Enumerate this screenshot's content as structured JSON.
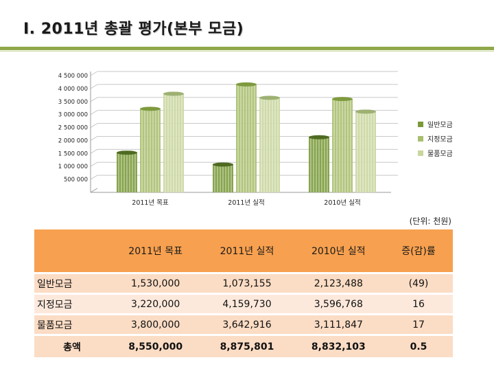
{
  "title": "Ⅰ. 2011년 총괄 평가(본부 모금)",
  "unit_note": "(단위: 천원)",
  "colors": {
    "series1": "#7a9a3a",
    "series2": "#a9bf6e",
    "series3": "#c9d69e",
    "header_bg": "#f7a04f",
    "row_bg": "#fbdcc4",
    "title_rule": "#8fa84a"
  },
  "chart_data": {
    "type": "bar",
    "categories": [
      "2011년 목표",
      "2011년 실적",
      "2010년 실적"
    ],
    "series": [
      {
        "name": "일반모금",
        "values": [
          1530000,
          1073155,
          2123488
        ]
      },
      {
        "name": "지정모금",
        "values": [
          3220000,
          4159730,
          3596768
        ]
      },
      {
        "name": "물품모금",
        "values": [
          3800000,
          3642916,
          3111847
        ]
      }
    ],
    "ylim": [
      0,
      4500000
    ],
    "yticks": [
      500000,
      1000000,
      1500000,
      2000000,
      2500000,
      3000000,
      3500000,
      4000000,
      4500000
    ],
    "ytick_labels": [
      "500 000",
      "1 000 000",
      "1 500 000",
      "2 000 000",
      "2 500 000",
      "3 000 000",
      "3 500 000",
      "4 000 000",
      "4 500 000"
    ],
    "legend_position": "right",
    "grid": true
  },
  "table": {
    "headers": [
      "",
      "2011년 목표",
      "2011년 실적",
      "2010년 실적",
      "증(감)률"
    ],
    "rows": [
      [
        "일반모금",
        "1,530,000",
        "1,073,155",
        "2,123,488",
        "(49)"
      ],
      [
        "지정모금",
        "3,220,000",
        "4,159,730",
        "3,596,768",
        "16"
      ],
      [
        "물품모금",
        "3,800,000",
        "3,642,916",
        "3,111,847",
        "17"
      ]
    ],
    "total": [
      "총액",
      "8,550,000",
      "8,875,801",
      "8,832,103",
      "0.5"
    ]
  }
}
